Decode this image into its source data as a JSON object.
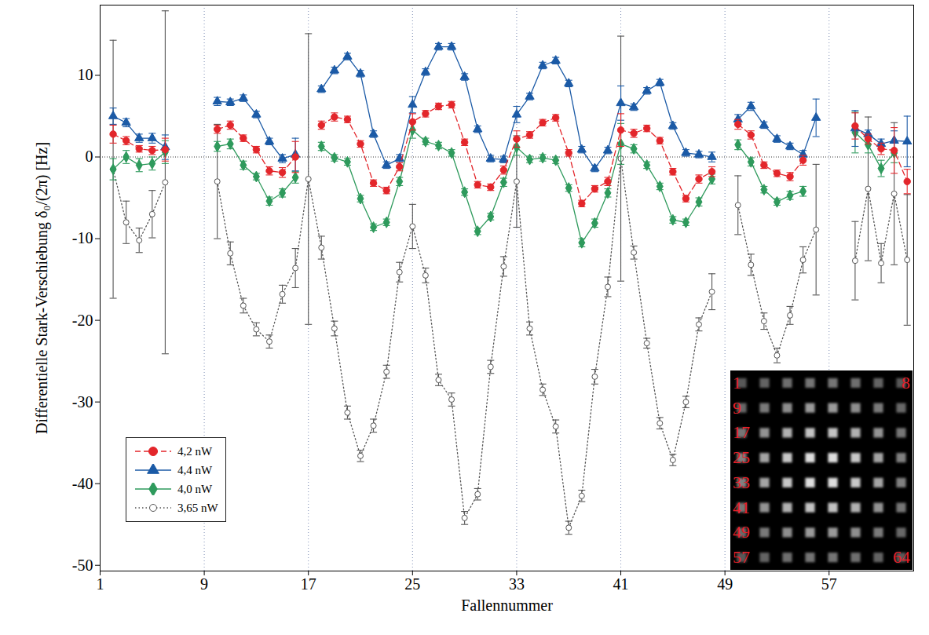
{
  "chart_data": {
    "type": "line",
    "x_label": "Fallennummer",
    "y_label": "Differentielle Stark-Verschiebung δ₀/(2π) [Hz]",
    "xlim": [
      1,
      63.5
    ],
    "ylim": [
      -50.7,
      18.6
    ],
    "xticks": [
      1,
      9,
      17,
      25,
      33,
      41,
      49,
      57
    ],
    "yticks": [
      -50,
      -40,
      -30,
      -20,
      -10,
      0,
      10
    ],
    "grid": true,
    "legend": "bottom-left",
    "x": [
      1,
      2,
      3,
      4,
      5,
      6,
      7,
      8,
      9,
      10,
      11,
      12,
      13,
      14,
      15,
      16,
      17,
      18,
      19,
      20,
      21,
      22,
      23,
      24,
      25,
      26,
      27,
      28,
      29,
      30,
      31,
      32,
      33,
      34,
      35,
      36,
      37,
      38,
      39,
      40,
      41,
      42,
      43,
      44,
      45,
      46,
      47,
      48,
      49,
      50,
      51,
      52,
      53,
      54,
      55,
      56,
      57,
      58,
      59,
      60,
      61,
      62,
      63,
      64
    ],
    "series": [
      {
        "name": "4,2 nW",
        "color": "#e3262b",
        "marker": "circle",
        "line_style": "dashed",
        "values": [
          null,
          2.8,
          2.0,
          1.0,
          0.8,
          0.9,
          null,
          null,
          null,
          3.4,
          3.9,
          2.3,
          0.9,
          -1.7,
          -1.9,
          0.0,
          null,
          3.9,
          4.9,
          4.6,
          1.6,
          -3.2,
          -4.1,
          -1.2,
          4.3,
          5.3,
          6.2,
          6.4,
          1.8,
          -3.4,
          -3.7,
          -1.6,
          2.2,
          2.7,
          4.2,
          4.8,
          0.5,
          -5.7,
          -3.9,
          -3.0,
          3.3,
          2.9,
          3.5,
          2.0,
          -1.8,
          -5.1,
          -2.7,
          -1.8,
          null,
          4.0,
          2.7,
          -1.0,
          -2.0,
          -2.4,
          -0.4,
          null,
          null,
          null,
          3.8,
          2.2,
          1.0,
          0.8,
          -3.0,
          null
        ],
        "errors": [
          null,
          1.1,
          0.5,
          0.4,
          0.5,
          1.4,
          null,
          null,
          null,
          0.5,
          0.5,
          0.4,
          0.4,
          0.5,
          0.6,
          1.9,
          null,
          0.5,
          0.5,
          0.4,
          0.4,
          0.4,
          0.4,
          0.5,
          1.0,
          0.4,
          0.4,
          0.4,
          0.4,
          0.4,
          0.4,
          0.5,
          1.0,
          0.4,
          0.4,
          0.4,
          0.4,
          0.4,
          0.4,
          0.5,
          2.0,
          0.5,
          0.4,
          0.4,
          0.4,
          0.4,
          0.5,
          0.6,
          null,
          0.6,
          0.5,
          0.4,
          0.4,
          0.5,
          0.6,
          null,
          null,
          null,
          1.6,
          0.6,
          0.7,
          2.8,
          1.5,
          null
        ]
      },
      {
        "name": "4,4 nW",
        "color": "#1b5aa6",
        "marker": "triangle",
        "line_style": "solid",
        "values": [
          null,
          5.0,
          4.2,
          2.3,
          2.3,
          1.2,
          null,
          null,
          null,
          6.8,
          6.7,
          7.2,
          5.2,
          1.9,
          -0.2,
          0.3,
          null,
          8.3,
          10.6,
          12.3,
          10.2,
          2.8,
          -1.0,
          -0.2,
          6.4,
          10.4,
          13.5,
          13.5,
          9.8,
          3.4,
          -0.2,
          -0.3,
          5.2,
          7.4,
          11.2,
          11.8,
          9.0,
          0.9,
          -1.4,
          0.8,
          6.6,
          6.1,
          8.1,
          9.1,
          3.8,
          0.5,
          0.3,
          0.0,
          null,
          4.6,
          6.2,
          3.9,
          2.2,
          1.3,
          0.3,
          4.8,
          null,
          null,
          3.5,
          2.8,
          1.6,
          2.0,
          1.9,
          null
        ],
        "errors": [
          null,
          1.0,
          0.5,
          0.5,
          0.6,
          1.5,
          null,
          null,
          null,
          0.5,
          0.4,
          0.4,
          0.4,
          0.4,
          0.5,
          2.0,
          null,
          0.4,
          0.4,
          0.4,
          0.4,
          0.4,
          0.4,
          0.5,
          1.0,
          0.4,
          0.4,
          0.4,
          0.4,
          0.4,
          0.4,
          0.4,
          1.0,
          0.4,
          0.4,
          0.4,
          0.4,
          0.4,
          0.4,
          0.4,
          2.1,
          0.4,
          0.4,
          0.4,
          0.4,
          0.4,
          0.4,
          0.6,
          null,
          0.6,
          0.5,
          0.4,
          0.4,
          0.4,
          0.5,
          2.3,
          null,
          null,
          2.2,
          0.5,
          0.6,
          1.2,
          3.1,
          null
        ]
      },
      {
        "name": "4,0 nW",
        "color": "#2e9a5c",
        "marker": "diamond",
        "line_style": "solid",
        "values": [
          null,
          -1.5,
          0.0,
          -1.0,
          -0.8,
          0.6,
          null,
          null,
          null,
          1.3,
          1.6,
          -1.0,
          -2.4,
          -5.4,
          -4.4,
          -2.5,
          null,
          1.3,
          -0.1,
          -0.6,
          -5.1,
          -8.6,
          -8.0,
          -3.0,
          3.3,
          1.9,
          1.4,
          0.5,
          -4.3,
          -9.1,
          -7.3,
          -3.1,
          1.2,
          -0.3,
          -0.1,
          -0.4,
          -3.8,
          -10.5,
          -8.1,
          -4.4,
          1.6,
          1.0,
          -1.0,
          -3.6,
          -7.7,
          -8.0,
          -5.5,
          -2.7,
          null,
          1.5,
          -0.6,
          -4.0,
          -5.5,
          -4.7,
          -4.2,
          null,
          null,
          null,
          3.0,
          1.5,
          -1.4,
          0.5,
          null,
          null
        ],
        "errors": [
          null,
          1.3,
          0.8,
          0.8,
          0.8,
          1.4,
          null,
          null,
          null,
          0.6,
          0.6,
          0.5,
          0.4,
          0.5,
          0.5,
          0.7,
          null,
          0.5,
          0.4,
          0.4,
          0.4,
          0.4,
          0.4,
          0.5,
          1.0,
          0.4,
          0.4,
          0.4,
          0.4,
          0.4,
          0.4,
          0.5,
          1.0,
          0.4,
          0.4,
          0.4,
          0.4,
          0.5,
          0.5,
          0.5,
          2.5,
          0.5,
          0.4,
          0.4,
          0.4,
          0.4,
          0.5,
          0.6,
          null,
          0.6,
          0.5,
          0.4,
          0.4,
          0.5,
          0.6,
          null,
          null,
          null,
          2.5,
          1.0,
          1.0,
          1.2,
          null,
          null
        ]
      },
      {
        "name": "3,65 nW",
        "color": "#555555",
        "marker": "circle-open",
        "line_style": "dotted",
        "values": [
          null,
          -1.5,
          -8.0,
          -10.2,
          -7.0,
          -3.1,
          null,
          null,
          null,
          -3.0,
          -11.8,
          -18.2,
          -21.1,
          -22.6,
          -16.8,
          -13.6,
          -2.7,
          -11.1,
          -21.0,
          -31.3,
          -36.6,
          -32.9,
          -26.3,
          -14.1,
          -8.5,
          -14.5,
          -27.3,
          -29.7,
          -44.2,
          -41.3,
          -25.7,
          -13.4,
          -3.0,
          -21.0,
          -28.5,
          -33.0,
          -45.4,
          -41.5,
          -26.9,
          -15.9,
          -0.2,
          -11.7,
          -22.8,
          -32.6,
          -37.1,
          -30.0,
          -20.5,
          -16.5,
          null,
          -5.9,
          -13.2,
          -20.1,
          -24.3,
          -19.4,
          -12.6,
          -8.9,
          null,
          null,
          -12.7,
          -3.9,
          -13.0,
          -4.5,
          -12.6,
          null
        ],
        "errors": [
          null,
          15.8,
          2.6,
          1.5,
          2.9,
          21.0,
          null,
          null,
          null,
          7.0,
          1.4,
          0.9,
          0.8,
          0.8,
          1.1,
          2.4,
          17.8,
          1.4,
          0.9,
          0.8,
          0.7,
          0.8,
          0.8,
          1.2,
          2.7,
          0.9,
          0.7,
          0.8,
          0.8,
          0.7,
          0.8,
          1.2,
          5.6,
          0.8,
          0.7,
          0.8,
          0.8,
          0.7,
          0.9,
          1.2,
          15.0,
          0.8,
          0.6,
          0.7,
          0.7,
          0.7,
          0.8,
          2.2,
          null,
          3.6,
          1.3,
          1.0,
          0.9,
          1.1,
          1.6,
          8.0,
          null,
          null,
          4.8,
          8.8,
          2.4,
          8.7,
          8.0,
          null
        ]
      }
    ],
    "inset": {
      "rows": 8,
      "columns": 8,
      "left_labels": [
        "1",
        "9",
        "17",
        "25",
        "33",
        "41",
        "49",
        "57"
      ],
      "right_labels": [
        "8",
        null,
        null,
        null,
        null,
        null,
        null,
        "64"
      ]
    }
  }
}
